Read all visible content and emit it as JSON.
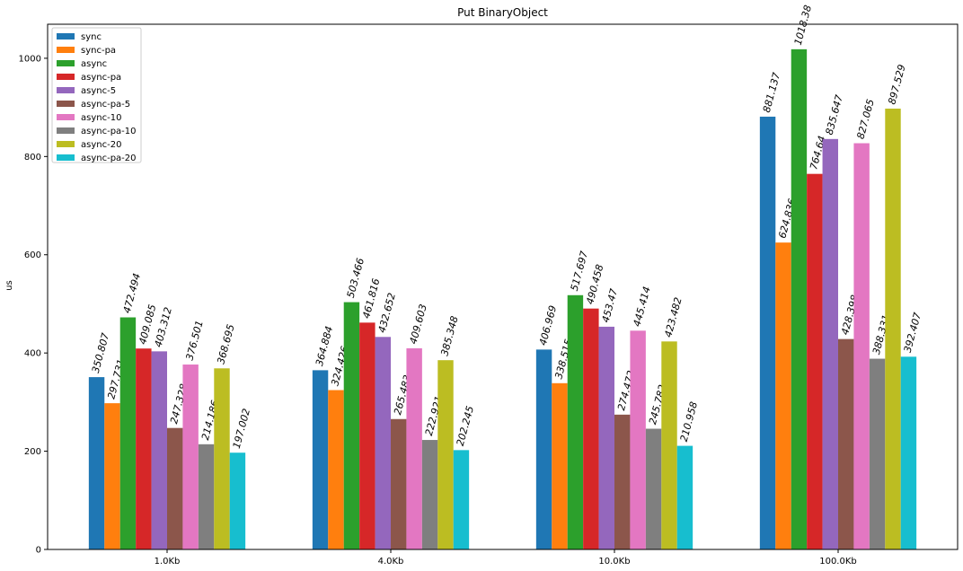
{
  "chart_data": {
    "type": "bar",
    "title": "Put BinaryObject",
    "xlabel": "",
    "ylabel": "us",
    "categories": [
      "1.0Kb",
      "4.0Kb",
      "10.0Kb",
      "100.0Kb"
    ],
    "yticks": [
      0,
      200,
      400,
      600,
      800,
      1000
    ],
    "ylim": [
      0,
      1069.3
    ],
    "grid": false,
    "legend_position": "top-left",
    "series": [
      {
        "name": "sync",
        "color": "#1f77b4",
        "values": [
          350.807,
          364.884,
          406.969,
          881.137
        ],
        "labels": [
          "350.807",
          "364.884",
          "406.969",
          "881.137"
        ]
      },
      {
        "name": "sync-pa",
        "color": "#ff7f0e",
        "values": [
          297.731,
          324.426,
          338.515,
          624.836
        ],
        "labels": [
          "297.731",
          "324.426",
          "338.515",
          "624.836"
        ]
      },
      {
        "name": "async",
        "color": "#2ca02c",
        "values": [
          472.494,
          503.466,
          517.697,
          1018.38
        ],
        "labels": [
          "472.494",
          "503.466",
          "517.697",
          "1018.38"
        ]
      },
      {
        "name": "async-pa",
        "color": "#d62728",
        "values": [
          409.085,
          461.816,
          490.458,
          764.64
        ],
        "labels": [
          "409.085",
          "461.816",
          "490.458",
          "764.64"
        ]
      },
      {
        "name": "async-5",
        "color": "#9467bd",
        "values": [
          403.312,
          432.652,
          453.47,
          835.647
        ],
        "labels": [
          "403.312",
          "432.652",
          "453.47",
          "835.647"
        ]
      },
      {
        "name": "async-pa-5",
        "color": "#8c564b",
        "values": [
          247.328,
          265.483,
          274.472,
          428.398
        ],
        "labels": [
          "247.328",
          "265.483",
          "274.472",
          "428.398"
        ]
      },
      {
        "name": "async-10",
        "color": "#e377c2",
        "values": [
          376.501,
          409.603,
          445.414,
          827.065
        ],
        "labels": [
          "376.501",
          "409.603",
          "445.414",
          "827.065"
        ]
      },
      {
        "name": "async-pa-10",
        "color": "#7f7f7f",
        "values": [
          214.186,
          222.921,
          245.782,
          388.331
        ],
        "labels": [
          "214.186",
          "222.921",
          "245.782",
          "388.331"
        ]
      },
      {
        "name": "async-20",
        "color": "#bcbd22",
        "values": [
          368.695,
          385.348,
          423.482,
          897.529
        ],
        "labels": [
          "368.695",
          "385.348",
          "423.482",
          "897.529"
        ]
      },
      {
        "name": "async-pa-20",
        "color": "#17becf",
        "values": [
          197.002,
          202.245,
          210.958,
          392.407
        ],
        "labels": [
          "197.002",
          "202.245",
          "210.958",
          "392.407"
        ]
      }
    ]
  }
}
